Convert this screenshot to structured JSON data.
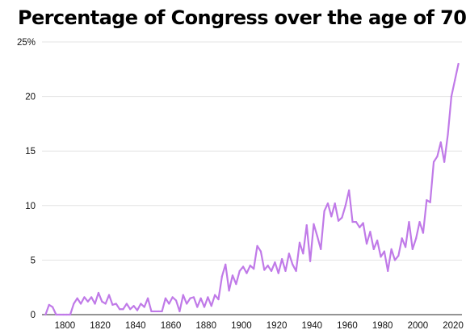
{
  "chart_data": {
    "type": "line",
    "title": "Percentage of Congress over the age of 70",
    "xlabel": "",
    "ylabel": "",
    "xlim": [
      1787,
      2025
    ],
    "ylim": [
      0,
      25
    ],
    "x_ticks": [
      1800,
      1820,
      1840,
      1860,
      1880,
      1900,
      1920,
      1940,
      1960,
      1980,
      2000,
      2020
    ],
    "y_ticks": [
      0,
      5,
      10,
      15,
      20,
      25
    ],
    "y_tick_labels": [
      "0",
      "5",
      "10",
      "15",
      "20",
      "25%"
    ],
    "grid": "horizontal",
    "line_color": "#c07ae8",
    "series": [
      {
        "values": [
          [
            1789,
            0
          ],
          [
            1791,
            0.9
          ],
          [
            1793,
            0.7
          ],
          [
            1795,
            0
          ],
          [
            1797,
            0
          ],
          [
            1799,
            0
          ],
          [
            1801,
            0
          ],
          [
            1803,
            0
          ],
          [
            1805,
            1.0
          ],
          [
            1807,
            1.5
          ],
          [
            1809,
            1.0
          ],
          [
            1811,
            1.6
          ],
          [
            1813,
            1.2
          ],
          [
            1815,
            1.6
          ],
          [
            1817,
            1.0
          ],
          [
            1819,
            2.0
          ],
          [
            1821,
            1.2
          ],
          [
            1823,
            1.0
          ],
          [
            1825,
            1.8
          ],
          [
            1827,
            0.9
          ],
          [
            1829,
            1.0
          ],
          [
            1831,
            0.5
          ],
          [
            1833,
            0.5
          ],
          [
            1835,
            1.0
          ],
          [
            1837,
            0.5
          ],
          [
            1839,
            0.8
          ],
          [
            1841,
            0.4
          ],
          [
            1843,
            1.0
          ],
          [
            1845,
            0.7
          ],
          [
            1847,
            1.5
          ],
          [
            1849,
            0.3
          ],
          [
            1851,
            0.3
          ],
          [
            1853,
            0.3
          ],
          [
            1855,
            0.3
          ],
          [
            1857,
            1.5
          ],
          [
            1859,
            1.0
          ],
          [
            1861,
            1.6
          ],
          [
            1863,
            1.3
          ],
          [
            1865,
            0.3
          ],
          [
            1867,
            1.8
          ],
          [
            1869,
            1.0
          ],
          [
            1871,
            1.5
          ],
          [
            1873,
            1.6
          ],
          [
            1875,
            0.7
          ],
          [
            1877,
            1.5
          ],
          [
            1879,
            0.7
          ],
          [
            1881,
            1.6
          ],
          [
            1883,
            0.8
          ],
          [
            1885,
            1.8
          ],
          [
            1887,
            1.4
          ],
          [
            1889,
            3.5
          ],
          [
            1891,
            4.6
          ],
          [
            1893,
            2.2
          ],
          [
            1895,
            3.6
          ],
          [
            1897,
            2.8
          ],
          [
            1899,
            4.0
          ],
          [
            1901,
            4.4
          ],
          [
            1903,
            3.8
          ],
          [
            1905,
            4.5
          ],
          [
            1907,
            4.2
          ],
          [
            1909,
            6.3
          ],
          [
            1911,
            5.8
          ],
          [
            1913,
            4.1
          ],
          [
            1915,
            4.5
          ],
          [
            1917,
            4.0
          ],
          [
            1919,
            4.8
          ],
          [
            1921,
            3.8
          ],
          [
            1923,
            5.1
          ],
          [
            1925,
            4.0
          ],
          [
            1927,
            5.6
          ],
          [
            1929,
            4.6
          ],
          [
            1931,
            4.0
          ],
          [
            1933,
            6.6
          ],
          [
            1935,
            5.6
          ],
          [
            1937,
            8.2
          ],
          [
            1939,
            4.9
          ],
          [
            1941,
            8.3
          ],
          [
            1943,
            7.2
          ],
          [
            1945,
            6.0
          ],
          [
            1947,
            9.5
          ],
          [
            1949,
            10.2
          ],
          [
            1951,
            9.0
          ],
          [
            1953,
            10.2
          ],
          [
            1955,
            8.6
          ],
          [
            1957,
            8.9
          ],
          [
            1959,
            10.0
          ],
          [
            1961,
            11.4
          ],
          [
            1963,
            8.5
          ],
          [
            1965,
            8.5
          ],
          [
            1967,
            8.0
          ],
          [
            1969,
            8.4
          ],
          [
            1971,
            6.5
          ],
          [
            1973,
            7.6
          ],
          [
            1975,
            6.0
          ],
          [
            1977,
            6.8
          ],
          [
            1979,
            5.3
          ],
          [
            1981,
            5.8
          ],
          [
            1983,
            4.0
          ],
          [
            1985,
            6.0
          ],
          [
            1987,
            5.0
          ],
          [
            1989,
            5.4
          ],
          [
            1991,
            7.0
          ],
          [
            1993,
            6.2
          ],
          [
            1995,
            8.5
          ],
          [
            1997,
            6.0
          ],
          [
            1999,
            7.0
          ],
          [
            2001,
            8.5
          ],
          [
            2003,
            7.5
          ],
          [
            2005,
            10.5
          ],
          [
            2007,
            10.3
          ],
          [
            2009,
            14.0
          ],
          [
            2011,
            14.5
          ],
          [
            2013,
            15.8
          ],
          [
            2015,
            14.0
          ],
          [
            2017,
            16.5
          ],
          [
            2019,
            20.0
          ],
          [
            2021,
            21.5
          ],
          [
            2023,
            23.0
          ]
        ]
      }
    ]
  }
}
